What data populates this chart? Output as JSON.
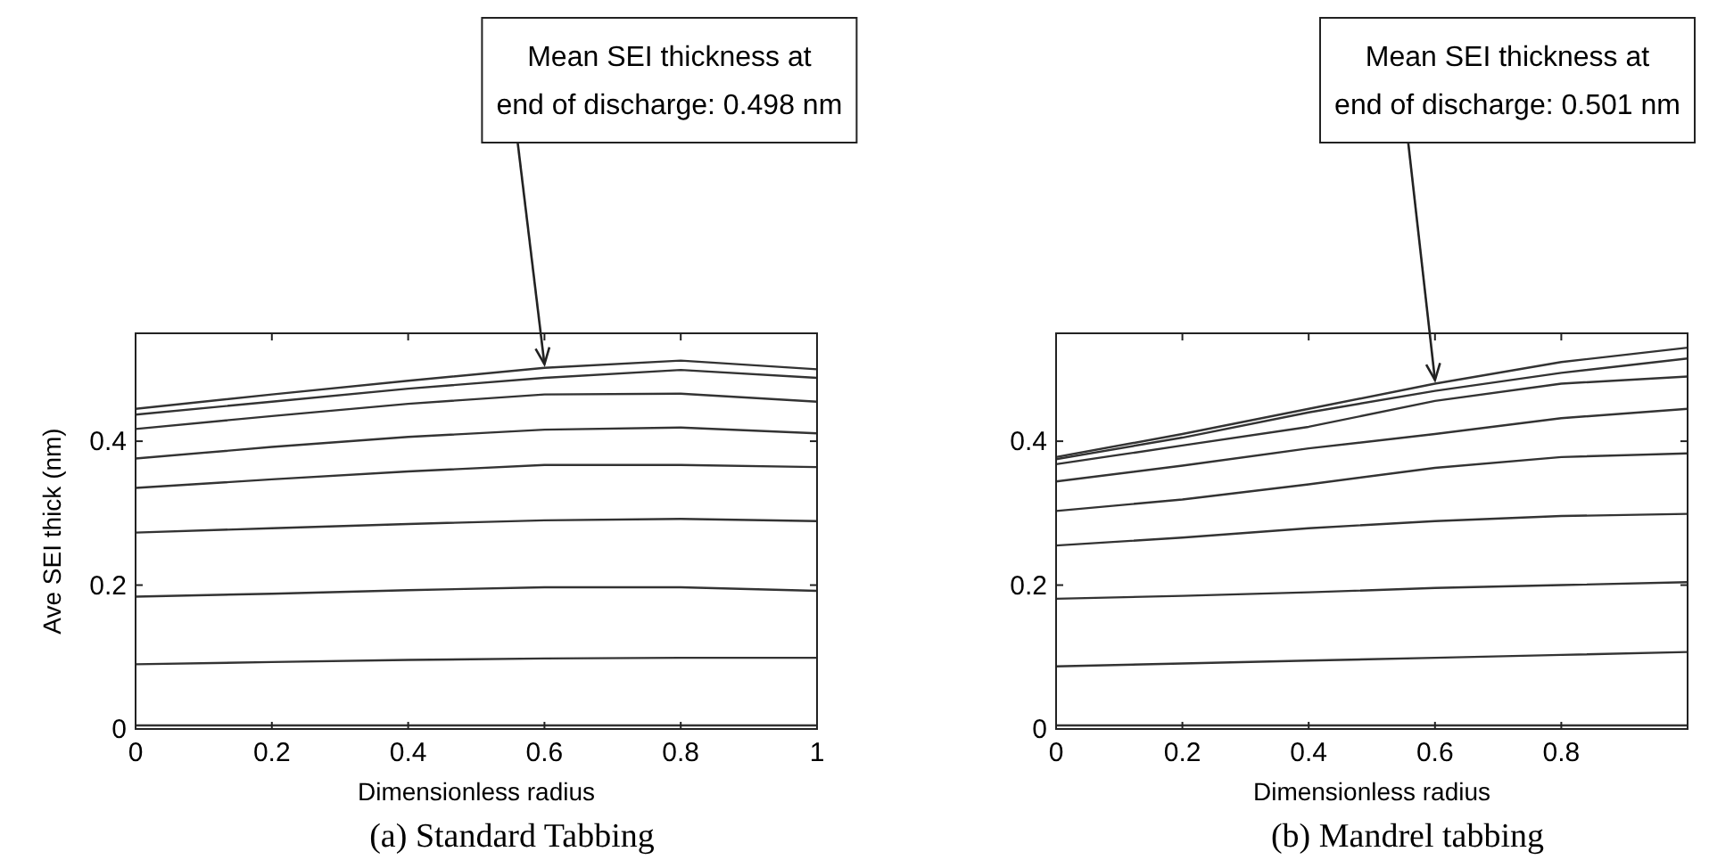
{
  "chart_data": [
    {
      "type": "line",
      "xlabel": "Dimensionless radius",
      "ylabel": "Ave SEI thick (nm)",
      "x": [
        0,
        0.2,
        0.4,
        0.6,
        0.8,
        1
      ],
      "xlim": [
        0,
        1
      ],
      "ylim": [
        0,
        0.55
      ],
      "xticks": [
        0,
        0.2,
        0.4,
        0.6,
        0.8,
        1
      ],
      "yticks": [
        0,
        0.2,
        0.4
      ],
      "grid": false,
      "series": [
        {
          "color": "#333333",
          "values": [
            0.005,
            0.005,
            0.005,
            0.005,
            0.005,
            0.005
          ]
        },
        {
          "color": "#333333",
          "values": [
            0.09,
            0.093,
            0.096,
            0.098,
            0.099,
            0.099
          ]
        },
        {
          "color": "#333333",
          "values": [
            0.184,
            0.188,
            0.193,
            0.197,
            0.197,
            0.192
          ]
        },
        {
          "color": "#333333",
          "values": [
            0.273,
            0.279,
            0.285,
            0.29,
            0.292,
            0.289
          ]
        },
        {
          "color": "#333333",
          "values": [
            0.335,
            0.347,
            0.358,
            0.367,
            0.367,
            0.364
          ]
        },
        {
          "color": "#333333",
          "values": [
            0.376,
            0.392,
            0.406,
            0.416,
            0.419,
            0.411
          ]
        },
        {
          "color": "#333333",
          "values": [
            0.417,
            0.435,
            0.452,
            0.465,
            0.466,
            0.455
          ]
        },
        {
          "color": "#333333",
          "values": [
            0.437,
            0.455,
            0.473,
            0.488,
            0.499,
            0.488
          ]
        },
        {
          "color": "#333333",
          "values": [
            0.445,
            0.465,
            0.484,
            0.502,
            0.512,
            0.5
          ]
        }
      ],
      "annotations": [
        {
          "text": "Mean SEI thickness at\nend of discharge: 0.498 nm",
          "x": 0.6,
          "y": 0.502
        },
        "(a) Standard Tabbing"
      ]
    },
    {
      "type": "line",
      "xlabel": "Dimensionless radius",
      "x": [
        0,
        0.2,
        0.4,
        0.6,
        0.8,
        1
      ],
      "xlim": [
        0,
        1
      ],
      "ylim": [
        0,
        0.55
      ],
      "xticks": [
        0,
        0.2,
        0.4,
        0.6,
        0.8,
        {
          "value": 1,
          "label": null
        }
      ],
      "yticks": [
        0,
        0.2,
        0.4
      ],
      "grid": false,
      "series": [
        {
          "color": "#333333",
          "values": [
            0.005,
            0.005,
            0.005,
            0.005,
            0.005,
            0.005
          ]
        },
        {
          "color": "#333333",
          "values": [
            0.087,
            0.091,
            0.095,
            0.099,
            0.103,
            0.107
          ]
        },
        {
          "color": "#333333",
          "values": [
            0.181,
            0.185,
            0.19,
            0.196,
            0.2,
            0.204
          ]
        },
        {
          "color": "#333333",
          "values": [
            0.255,
            0.266,
            0.279,
            0.289,
            0.296,
            0.299
          ]
        },
        {
          "color": "#333333",
          "values": [
            0.303,
            0.319,
            0.34,
            0.363,
            0.378,
            0.383
          ]
        },
        {
          "color": "#333333",
          "values": [
            0.344,
            0.366,
            0.39,
            0.41,
            0.432,
            0.445
          ]
        },
        {
          "color": "#333333",
          "values": [
            0.368,
            0.394,
            0.42,
            0.456,
            0.48,
            0.49
          ]
        },
        {
          "color": "#333333",
          "values": [
            0.375,
            0.405,
            0.44,
            0.47,
            0.495,
            0.515
          ]
        },
        {
          "color": "#333333",
          "values": [
            0.378,
            0.41,
            0.445,
            0.48,
            0.51,
            0.53
          ]
        }
      ],
      "annotations": [
        {
          "text": "Mean SEI thickness at\nend of discharge: 0.501 nm",
          "x": 0.6,
          "y": 0.48
        },
        "(b) Mandrel tabbing"
      ]
    }
  ]
}
